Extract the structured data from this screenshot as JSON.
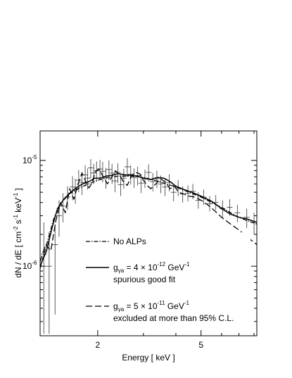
{
  "chart_data": {
    "type": "line",
    "xlabel": "Energy [ keV ]",
    "ylabel": "dN / dE [ cm⁻² s⁻¹ keV⁻¹ ]",
    "xscale": "log",
    "yscale": "log",
    "xlim": [
      1.2,
      8.2
    ],
    "ylim": [
      2.2e-07,
      1.9e-05
    ],
    "xticks": [
      {
        "value": 2,
        "label": "2"
      },
      {
        "value": 5,
        "label": "5"
      }
    ],
    "yticks": [
      {
        "value": 1e-06,
        "mantissa": "10",
        "exp": "-6"
      },
      {
        "value": 1e-05,
        "mantissa": "10",
        "exp": "-5"
      }
    ],
    "legend_position": "lower-left inside",
    "series": [
      {
        "name": "No ALPs",
        "style": "dashdot",
        "x": [
          1.2,
          1.28,
          1.36,
          1.45,
          1.55,
          1.7,
          1.85,
          2.0,
          2.2,
          2.4,
          2.7,
          3.0,
          3.3,
          3.6,
          4.0,
          4.5,
          5.0,
          5.5,
          6.0,
          6.5,
          7.0,
          7.5,
          8.2
        ],
        "y": [
          9.5e-07,
          1.7e-06,
          2.9e-06,
          4e-06,
          4.8e-06,
          5.5e-06,
          6e-06,
          6.5e-06,
          6.9e-06,
          7.1e-06,
          7.1e-06,
          6.9e-06,
          6.5e-06,
          6.1e-06,
          5.6e-06,
          5e-06,
          4.5e-06,
          4e-06,
          3.6e-06,
          3.2e-06,
          2.9e-06,
          2.7e-06,
          2.5e-06
        ]
      },
      {
        "name": "spurious good fit",
        "style": "solid",
        "x": [
          1.2,
          1.27,
          1.34,
          1.4,
          1.48,
          1.56,
          1.65,
          1.75,
          1.85,
          1.95,
          2.05,
          2.15,
          2.25,
          2.4,
          2.55,
          2.7,
          2.85,
          3.0,
          3.2,
          3.4,
          3.6,
          3.8,
          4.0,
          4.3,
          4.6,
          5.0,
          5.5,
          6.0,
          6.5,
          7.0,
          7.5,
          8.2
        ],
        "y": [
          1e-06,
          1.4e-06,
          2.4e-06,
          3.5e-06,
          4.3e-06,
          4.9e-06,
          5.5e-06,
          6e-06,
          6.3e-06,
          6.8e-06,
          6.8e-06,
          7.1e-06,
          7.2e-06,
          7.5e-06,
          7.3e-06,
          7.2e-06,
          7.1e-06,
          6.8e-06,
          6.6e-06,
          6.9e-06,
          6.8e-06,
          6.3e-06,
          5.7e-06,
          5.3e-06,
          5e-06,
          4.6e-06,
          4.1e-06,
          3.5e-06,
          3.1e-06,
          2.9e-06,
          2.8e-06,
          2.6e-06
        ]
      },
      {
        "name": "excluded at more than 95% C.L.",
        "style": "dashed",
        "x": [
          1.2,
          1.26,
          1.32,
          1.38,
          1.44,
          1.5,
          1.56,
          1.62,
          1.68,
          1.74,
          1.8,
          1.85,
          1.9,
          1.96,
          2.02,
          2.1,
          2.18,
          2.26,
          2.34,
          2.42,
          2.5,
          2.6,
          2.7,
          2.8,
          2.9,
          3.0,
          3.1,
          3.2,
          3.35,
          3.5,
          3.65,
          3.8,
          3.95,
          4.1,
          4.3,
          4.5,
          4.75,
          5.0,
          5.3,
          5.6,
          6.0,
          6.5,
          7.0,
          7.5,
          8.2
        ],
        "y": [
          1.1e-06,
          1.6e-06,
          1.4e-06,
          2.7e-06,
          4e-06,
          3.2e-06,
          5.4e-06,
          4.3e-06,
          6e-06,
          7.6e-06,
          6.3e-06,
          5.5e-06,
          6.1e-06,
          7.8e-06,
          8.3e-06,
          7e-06,
          6e-06,
          6.9e-06,
          8e-06,
          7.4e-06,
          6.4e-06,
          5.8e-06,
          7.2e-06,
          7.7e-06,
          7.5e-06,
          6.5e-06,
          5.8e-06,
          5.4e-06,
          6e-06,
          6.7e-06,
          6.2e-06,
          5.4e-06,
          5.7e-06,
          5e-06,
          4.8e-06,
          4.6e-06,
          4.5e-06,
          4.2e-06,
          3.8e-06,
          3.4e-06,
          2.9e-06,
          2.5e-06,
          2.2e-06,
          1.9e-06,
          1.6e-06
        ]
      }
    ],
    "data_points": {
      "x": [
        1.24,
        1.3,
        1.37,
        1.42,
        1.47,
        1.53,
        1.6,
        1.64,
        1.69,
        1.74,
        1.79,
        1.83,
        1.88,
        1.93,
        1.98,
        2.04,
        2.09,
        2.15,
        2.21,
        2.27,
        2.33,
        2.39,
        2.45,
        2.52,
        2.6,
        2.68,
        2.76,
        2.85,
        2.94,
        3.04,
        3.14,
        3.26,
        3.38,
        3.5,
        3.63,
        3.77,
        3.92,
        4.08,
        4.25,
        4.45,
        4.65,
        4.88,
        5.12,
        5.4,
        5.7,
        6.05,
        6.45,
        6.9,
        7.5,
        8.0
      ],
      "y": [
        1.3e-06,
        1e-06,
        1.6e-06,
        3e-06,
        3.7e-06,
        4.5e-06,
        5.6e-06,
        5.3e-06,
        6.5e-06,
        6.2e-06,
        7.3e-06,
        6.8e-06,
        8.5e-06,
        7.6e-06,
        8e-06,
        8.3e-06,
        7.9e-06,
        6.9e-06,
        8.2e-06,
        7.6e-06,
        6.4e-06,
        7.7e-06,
        5.9e-06,
        6.8e-06,
        8.7e-06,
        7.4e-06,
        6.9e-06,
        7.2e-06,
        6.1e-06,
        6.8e-06,
        7.7e-06,
        6.3e-06,
        6.7e-06,
        6e-06,
        5.6e-06,
        6.2e-06,
        5e-06,
        5.5e-06,
        4.8e-06,
        4.9e-06,
        5.1e-06,
        4.2e-06,
        4.5e-06,
        3.9e-06,
        4e-06,
        3.5e-06,
        3.6e-06,
        3.2e-06,
        2.9e-06,
        2.6e-06
      ],
      "ylo": [
        2.3e-07,
        2.3e-07,
        3.5e-07,
        1.9e-06,
        2.6e-06,
        3.4e-06,
        4.2e-06,
        3.9e-06,
        5e-06,
        4.7e-06,
        5.7e-06,
        5.3e-06,
        6.8e-06,
        6e-06,
        6.3e-06,
        6.6e-06,
        6.2e-06,
        5.4e-06,
        6.5e-06,
        6e-06,
        5e-06,
        6.1e-06,
        4.6e-06,
        5.4e-06,
        7e-06,
        5.9e-06,
        5.5e-06,
        5.8e-06,
        4.9e-06,
        5.5e-06,
        6.3e-06,
        5.1e-06,
        5.5e-06,
        4.9e-06,
        4.6e-06,
        5.1e-06,
        4.1e-06,
        4.6e-06,
        4e-06,
        4.1e-06,
        4.3e-06,
        3.5e-06,
        3.8e-06,
        3.3e-06,
        3.4e-06,
        2.9e-06,
        3e-06,
        2.6e-06,
        2.3e-06,
        2e-06
      ],
      "yhi": [
        2.6e-06,
        2.1e-06,
        2.5e-06,
        4.2e-06,
        4.9e-06,
        5.7e-06,
        7.1e-06,
        6.7e-06,
        8.1e-06,
        7.8e-06,
        9e-06,
        8.4e-06,
        1.03e-05,
        9.3e-06,
        9.8e-06,
        1.01e-05,
        9.7e-06,
        8.5e-06,
        1e-05,
        9.3e-06,
        7.9e-06,
        9.4e-06,
        7.3e-06,
        8.3e-06,
        1.05e-05,
        9e-06,
        8.4e-06,
        8.7e-06,
        7.4e-06,
        8.2e-06,
        9.2e-06,
        7.6e-06,
        8e-06,
        7.2e-06,
        6.7e-06,
        7.4e-06,
        6e-06,
        6.5e-06,
        5.7e-06,
        5.8e-06,
        6e-06,
        5e-06,
        5.3e-06,
        4.6e-06,
        4.7e-06,
        4.2e-06,
        4.3e-06,
        3.8e-06,
        3.5e-06,
        3.2e-06
      ]
    },
    "legend": [
      {
        "style": "dashdot",
        "lines": [
          "No ALPs"
        ]
      },
      {
        "style": "solid",
        "coupling": {
          "symbol": "g",
          "sub": "γa",
          "text": " = 4 × 10",
          "exp": "-12",
          "unit": " GeV",
          "unit_exp": "-1"
        },
        "lines": [
          "spurious good fit"
        ]
      },
      {
        "style": "dashed",
        "coupling": {
          "symbol": "g",
          "sub": "γa",
          "text": " = 5 × 10",
          "exp": "-11",
          "unit": " GeV",
          "unit_exp": "-1"
        },
        "lines": [
          "excluded at more than 95% C.L."
        ]
      }
    ]
  }
}
